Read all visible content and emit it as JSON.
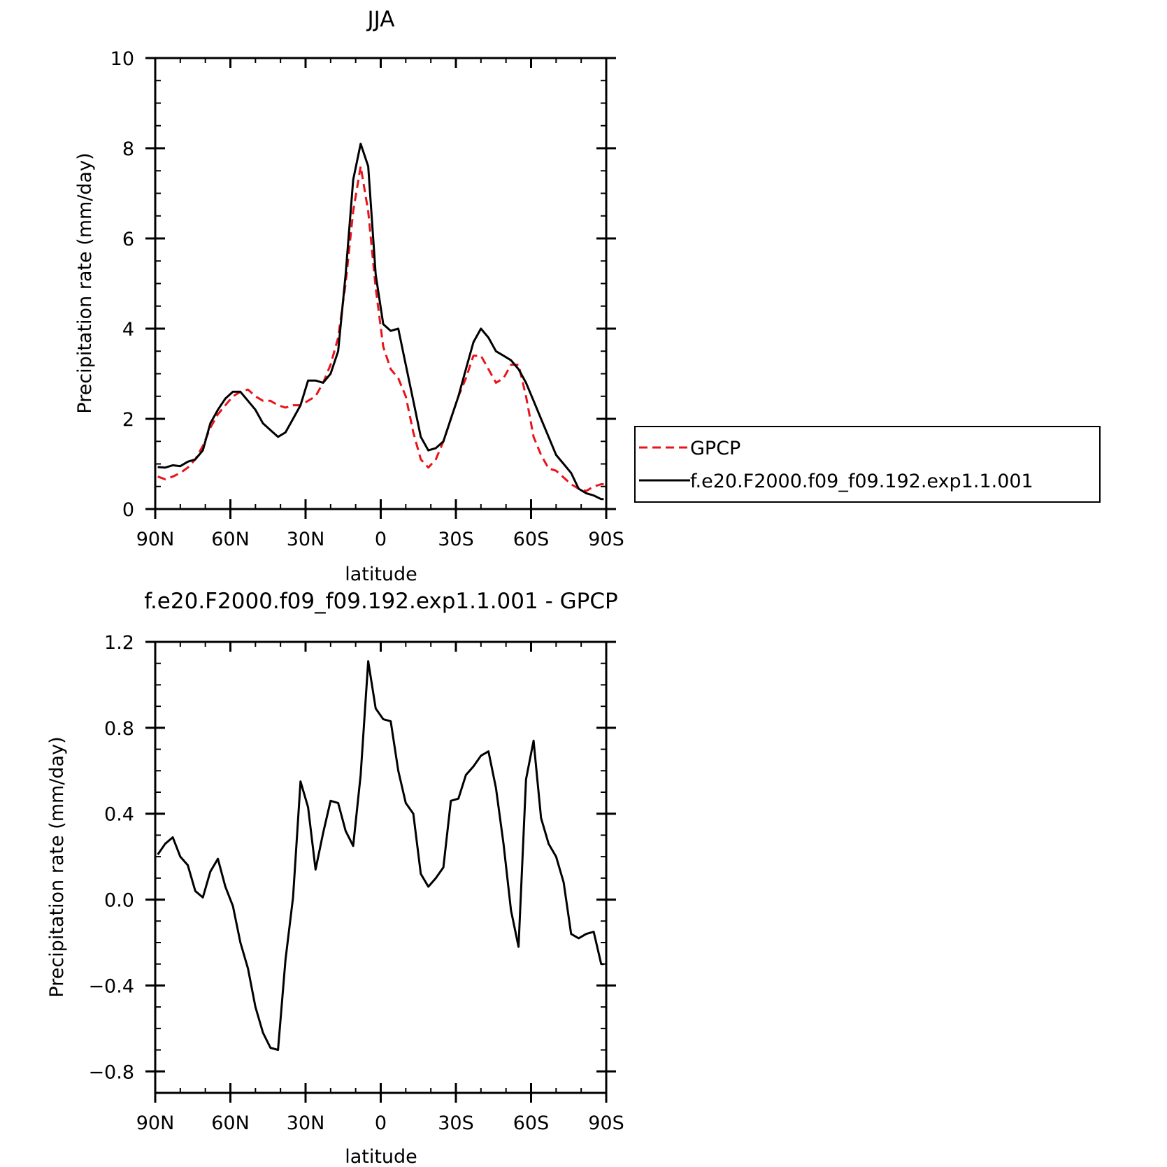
{
  "colors": {
    "gpcp": "#e8141b",
    "model": "#000000",
    "axis": "#000000",
    "background": "#ffffff"
  },
  "chart_data": [
    {
      "type": "line",
      "title": "JJA",
      "xlabel": "latitude",
      "ylabel": "Precipitation rate (mm/day)",
      "xlim": [
        90,
        -90
      ],
      "ylim": [
        0,
        10
      ],
      "xticks": [
        90,
        60,
        30,
        0,
        -30,
        -60,
        -90
      ],
      "xtick_labels": [
        "90N",
        "60N",
        "30N",
        "0",
        "30S",
        "60S",
        "90S"
      ],
      "yticks": [
        0,
        2,
        4,
        6,
        8,
        10
      ],
      "ytick_labels": [
        "0",
        "2",
        "4",
        "6",
        "8",
        "10"
      ],
      "grid": false,
      "legend": {
        "placement": "outside-right",
        "entries": [
          "GPCP",
          "f.e20.F2000.f09_f09.192.exp1.1.001"
        ]
      },
      "series": [
        {
          "name": "GPCP",
          "style": "dashed",
          "x": [
            89,
            86,
            83,
            80,
            77,
            74,
            71,
            68,
            65,
            62,
            59,
            56,
            53,
            50,
            47,
            44,
            41,
            38,
            35,
            32,
            29,
            26,
            23,
            20,
            17,
            14,
            11,
            8,
            5,
            2,
            -1,
            -4,
            -7,
            -10,
            -13,
            -16,
            -19,
            -22,
            -25,
            -28,
            -31,
            -34,
            -37,
            -40,
            -43,
            -46,
            -49,
            -52,
            -55,
            -58,
            -61,
            -64,
            -67,
            -70,
            -73,
            -76,
            -79,
            -82,
            -85,
            -88,
            -89
          ],
          "y": [
            0.72,
            0.66,
            0.72,
            0.8,
            0.92,
            1.1,
            1.4,
            1.8,
            2.1,
            2.3,
            2.5,
            2.6,
            2.65,
            2.5,
            2.4,
            2.4,
            2.3,
            2.25,
            2.3,
            2.3,
            2.4,
            2.5,
            2.8,
            3.2,
            3.8,
            5.0,
            6.6,
            7.6,
            6.6,
            4.9,
            3.6,
            3.1,
            2.9,
            2.5,
            1.7,
            1.1,
            0.92,
            1.1,
            1.5,
            2.0,
            2.5,
            2.9,
            3.4,
            3.4,
            3.1,
            2.8,
            2.9,
            3.2,
            3.2,
            2.5,
            1.6,
            1.2,
            0.9,
            0.85,
            0.7,
            0.55,
            0.45,
            0.4,
            0.5,
            0.55,
            0.55
          ]
        },
        {
          "name": "f.e20.F2000.f09_f09.192.exp1.1.001",
          "style": "solid",
          "x": [
            89,
            86,
            83,
            80,
            77,
            74,
            71,
            68,
            65,
            62,
            59,
            56,
            53,
            50,
            47,
            44,
            41,
            38,
            35,
            32,
            29,
            26,
            23,
            20,
            17,
            14,
            11,
            8,
            5,
            2,
            -1,
            -4,
            -7,
            -10,
            -13,
            -16,
            -19,
            -22,
            -25,
            -28,
            -31,
            -34,
            -37,
            -40,
            -43,
            -46,
            -49,
            -52,
            -55,
            -58,
            -61,
            -64,
            -67,
            -70,
            -73,
            -76,
            -79,
            -82,
            -85,
            -88,
            -89
          ],
          "y": [
            0.93,
            0.92,
            0.97,
            0.95,
            1.05,
            1.1,
            1.3,
            1.9,
            2.2,
            2.45,
            2.6,
            2.6,
            2.4,
            2.2,
            1.9,
            1.75,
            1.6,
            1.7,
            2.0,
            2.3,
            2.85,
            2.85,
            2.8,
            3.0,
            3.5,
            5.2,
            7.3,
            8.1,
            7.6,
            5.2,
            4.1,
            3.95,
            4.0,
            3.2,
            2.4,
            1.6,
            1.3,
            1.35,
            1.5,
            2.0,
            2.5,
            3.1,
            3.7,
            4.0,
            3.8,
            3.5,
            3.4,
            3.3,
            3.1,
            2.8,
            2.4,
            2.0,
            1.6,
            1.2,
            1.0,
            0.8,
            0.45,
            0.35,
            0.3,
            0.22,
            0.22
          ]
        }
      ]
    },
    {
      "type": "line",
      "title": "f.e20.F2000.f09_f09.192.exp1.1.001 - GPCP",
      "xlabel": "latitude",
      "ylabel": "Precipitation rate (mm/day)",
      "xlim": [
        90,
        -90
      ],
      "ylim": [
        -0.9,
        1.2
      ],
      "xticks": [
        90,
        60,
        30,
        0,
        -30,
        -60,
        -90
      ],
      "xtick_labels": [
        "90N",
        "60N",
        "30N",
        "0",
        "30S",
        "60S",
        "90S"
      ],
      "yticks": [
        1.2,
        0.8,
        0.4,
        0.0,
        -0.4,
        -0.8
      ],
      "ytick_labels": [
        "1.2",
        "0.8",
        "0.4",
        "0.0",
        "−0.4",
        "−0.8"
      ],
      "grid": false,
      "series": [
        {
          "style": "solid",
          "x": [
            89,
            86,
            83,
            80,
            77,
            74,
            71,
            68,
            65,
            62,
            59,
            56,
            53,
            50,
            47,
            44,
            41,
            38,
            35,
            32,
            29,
            26,
            23,
            20,
            17,
            14,
            11,
            8,
            5,
            2,
            -1,
            -4,
            -7,
            -10,
            -13,
            -16,
            -19,
            -22,
            -25,
            -28,
            -31,
            -34,
            -37,
            -40,
            -43,
            -46,
            -49,
            -52,
            -55,
            -58,
            -61,
            -64,
            -67,
            -70,
            -73,
            -76,
            -79,
            -82,
            -85,
            -88,
            -89
          ],
          "y": [
            0.21,
            0.26,
            0.29,
            0.2,
            0.16,
            0.04,
            0.01,
            0.13,
            0.19,
            0.06,
            -0.03,
            -0.2,
            -0.32,
            -0.5,
            -0.62,
            -0.69,
            -0.7,
            -0.28,
            0.01,
            0.55,
            0.43,
            0.14,
            0.31,
            0.46,
            0.45,
            0.32,
            0.25,
            0.58,
            1.11,
            0.89,
            0.84,
            0.83,
            0.6,
            0.45,
            0.4,
            0.12,
            0.06,
            0.1,
            0.15,
            0.46,
            0.47,
            0.58,
            0.62,
            0.67,
            0.69,
            0.52,
            0.26,
            -0.05,
            -0.22,
            0.56,
            0.74,
            0.38,
            0.26,
            0.2,
            0.08,
            -0.16,
            -0.18,
            -0.16,
            -0.15,
            -0.3,
            -0.3
          ]
        }
      ]
    }
  ]
}
